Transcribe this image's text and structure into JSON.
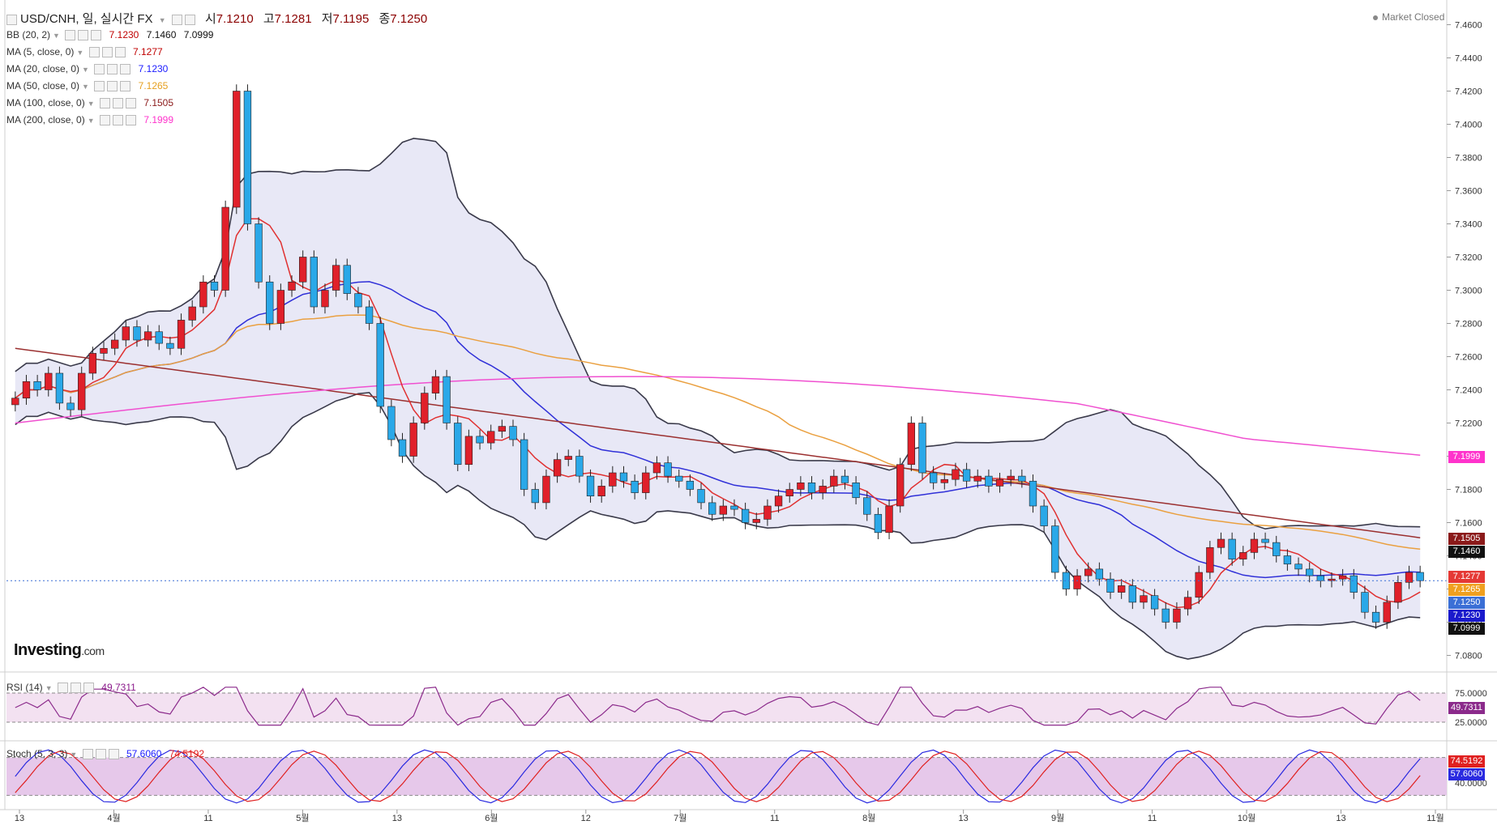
{
  "header": {
    "symbol_line": "USD/CNH, 일, 실시간 FX",
    "ohlc": [
      {
        "label": "시",
        "value": "7.1210"
      },
      {
        "label": "고",
        "value": "7.1281"
      },
      {
        "label": "저",
        "value": "7.1195"
      },
      {
        "label": "종",
        "value": "7.1250"
      }
    ],
    "market_status": "Market Closed"
  },
  "legend": [
    {
      "label": "BB (20, 2)",
      "values": [
        "7.1230",
        "7.1460",
        "7.0999"
      ],
      "color": "#c00000"
    },
    {
      "label": "MA (5, close, 0)",
      "values": [
        "7.1277"
      ],
      "color": "#c00000"
    },
    {
      "label": "MA (20, close, 0)",
      "values": [
        "7.1230"
      ],
      "color": "#1a1aff"
    },
    {
      "label": "MA (50, close, 0)",
      "values": [
        "7.1265"
      ],
      "color": "#e6a020"
    },
    {
      "label": "MA (100, close, 0)",
      "values": [
        "7.1505"
      ],
      "color": "#8b1a1a"
    },
    {
      "label": "MA (200, close, 0)",
      "values": [
        "7.1999"
      ],
      "color": "#ff33cc"
    }
  ],
  "logo": {
    "name": "Investing",
    "suffix": ".com"
  },
  "price_badges": [
    {
      "text": "7.1999",
      "color": "#ff33cc",
      "value": 7.1999
    },
    {
      "text": "7.1505",
      "color": "#8b1a1a",
      "value": 7.1505
    },
    {
      "text": "7.1460",
      "color": "#111111",
      "value": 7.146
    },
    {
      "text": "7.1277",
      "color": "#e53935",
      "value": 7.1277
    },
    {
      "text": "7.1265",
      "color": "#f0a020",
      "value": 7.1265
    },
    {
      "text": "7.1250",
      "color": "#3b6fd6",
      "value": 7.125
    },
    {
      "text": "7.1230",
      "color": "#1a1acc",
      "value": 7.123
    },
    {
      "text": "7.0999",
      "color": "#111111",
      "value": 7.0999
    }
  ],
  "rsi": {
    "label": "RSI (14)",
    "value": "49.7311",
    "levels": [
      "75.0000",
      "25.0000"
    ],
    "badge": "49.7311"
  },
  "stoch": {
    "label": "Stoch (5, 3, 3)",
    "k": "57.6060",
    "d": "74.5192",
    "levels": [
      "40.0000"
    ],
    "badge_k": "57.6060",
    "badge_d": "74.5192"
  },
  "chart_data": {
    "type": "candlestick",
    "ylim": [
      7.07,
      7.47
    ],
    "y_ticks": [
      "7.4600",
      "7.4400",
      "7.4200",
      "7.4000",
      "7.3800",
      "7.3600",
      "7.3400",
      "7.3200",
      "7.3000",
      "7.2800",
      "7.2600",
      "7.2400",
      "7.2200",
      "7.2000",
      "7.1800",
      "7.1600",
      "7.1400",
      "7.1200",
      "7.1000",
      "7.0800"
    ],
    "x_ticks": [
      "13",
      "4월",
      "11",
      "5월",
      "13",
      "6월",
      "12",
      "7월",
      "11",
      "8월",
      "13",
      "9월",
      "11",
      "10월",
      "13",
      "11월"
    ],
    "colors": {
      "up": "#e0202a",
      "down": "#2aa8e8",
      "band_fill": "#e4e4f4",
      "band_line": "#3a3a4a",
      "ma5": "#e03030",
      "ma20": "#3030d8",
      "ma50": "#eaa040",
      "ma100": "#9b3030",
      "ma200": "#f050d0"
    },
    "candles_close_trace": [
      7.235,
      7.245,
      7.24,
      7.25,
      7.232,
      7.228,
      7.25,
      7.262,
      7.265,
      7.27,
      7.278,
      7.27,
      7.275,
      7.268,
      7.265,
      7.282,
      7.29,
      7.305,
      7.3,
      7.35,
      7.42,
      7.34,
      7.305,
      7.28,
      7.3,
      7.305,
      7.32,
      7.29,
      7.3,
      7.315,
      7.298,
      7.29,
      7.28,
      7.23,
      7.21,
      7.2,
      7.22,
      7.238,
      7.248,
      7.22,
      7.195,
      7.212,
      7.208,
      7.215,
      7.218,
      7.21,
      7.18,
      7.172,
      7.188,
      7.198,
      7.2,
      7.188,
      7.176,
      7.182,
      7.19,
      7.185,
      7.178,
      7.19,
      7.196,
      7.188,
      7.185,
      7.18,
      7.172,
      7.165,
      7.17,
      7.168,
      7.16,
      7.162,
      7.17,
      7.176,
      7.18,
      7.184,
      7.178,
      7.182,
      7.188,
      7.184,
      7.175,
      7.165,
      7.154,
      7.17,
      7.195,
      7.22,
      7.19,
      7.184,
      7.186,
      7.192,
      7.185,
      7.188,
      7.182,
      7.186,
      7.188,
      7.185,
      7.17,
      7.158,
      7.13,
      7.12,
      7.128,
      7.132,
      7.126,
      7.118,
      7.122,
      7.112,
      7.116,
      7.108,
      7.1,
      7.108,
      7.115,
      7.13,
      7.145,
      7.15,
      7.138,
      7.142,
      7.15,
      7.148,
      7.14,
      7.135,
      7.132,
      7.128,
      7.125,
      7.126,
      7.128,
      7.118,
      7.106,
      7.1,
      7.112,
      7.124,
      7.13,
      7.125
    ]
  }
}
